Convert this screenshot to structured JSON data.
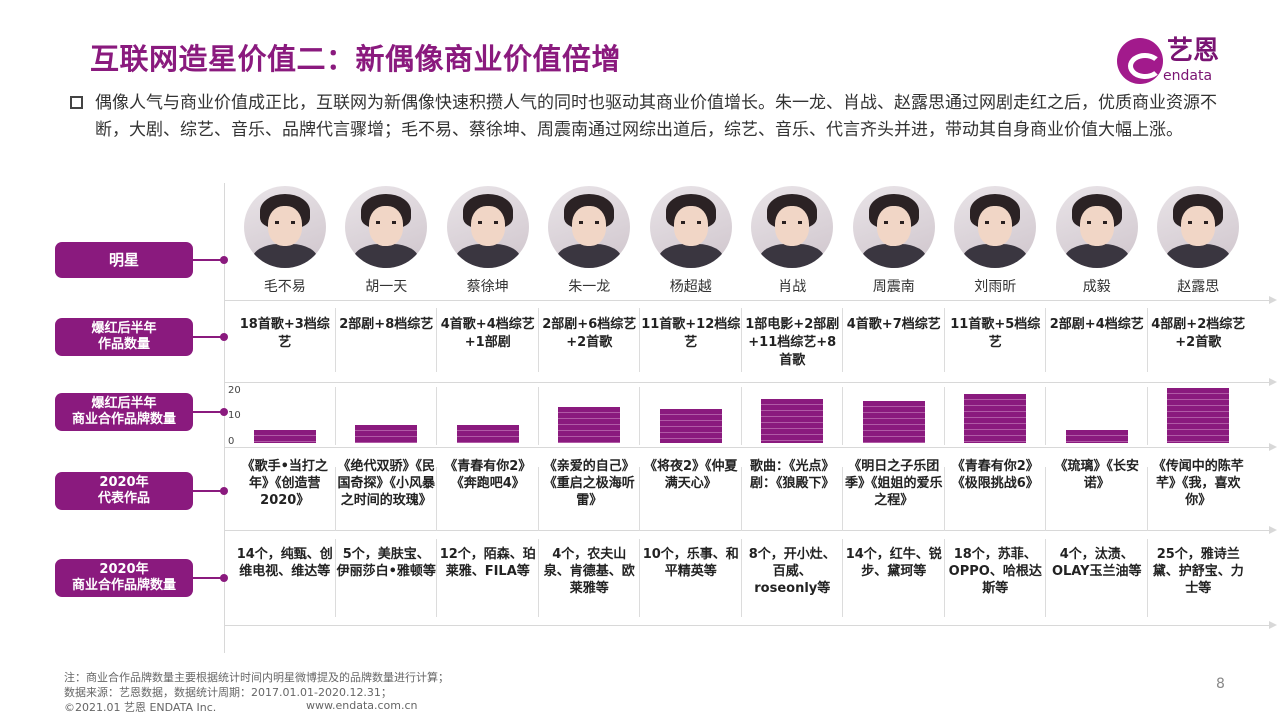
{
  "title": "互联网造星价值二：新偶像商业价值倍增",
  "logo": {
    "cn": "艺恩",
    "en": "endata"
  },
  "intro": "偶像人气与商业价值成正比，互联网为新偶像快速积攒人气的同时也驱动其商业价值增长。朱一龙、肖战、赵露思通过网剧走红之后，优质商业资源不断，大剧、综艺、音乐、品牌代言骤增；毛不易、蔡徐坤、周震南通过网综出道后，综艺、音乐、代言齐头并进，带动其自身商业价值大幅上涨。",
  "row_labels": {
    "star": "明星",
    "works_l1": "爆红后半年",
    "works_l2": "作品数量",
    "brands_l1": "爆红后半年",
    "brands_l2": "商业合作品牌数量",
    "rep_l1": "2020年",
    "rep_l2": "代表作品",
    "brands2020_l1": "2020年",
    "brands2020_l2": "商业合作品牌数量"
  },
  "stars": [
    {
      "name": "毛不易",
      "works": "18首歌+3档综艺",
      "rep": "《歌手•当打之年》《创造营2020》",
      "brands": "14个，纯甄、创维电视、维达等"
    },
    {
      "name": "胡一天",
      "works": "2部剧+8档综艺",
      "rep": "《绝代双骄》《民国奇探》《小风暴之时间的玫瑰》",
      "brands": "5个，美肤宝、伊丽莎白•雅顿等"
    },
    {
      "name": "蔡徐坤",
      "works": "4首歌+4档综艺+1部剧",
      "rep": "《青春有你2》《奔跑吧4》",
      "brands": "12个，陌森、珀莱雅、FILA等"
    },
    {
      "name": "朱一龙",
      "works": "2部剧+6档综艺+2首歌",
      "rep": "《亲爱的自己》《重启之极海听雷》",
      "brands": "4个，农夫山泉、肯德基、欧莱雅等"
    },
    {
      "name": "杨超越",
      "works": "11首歌+12档综艺",
      "rep": "《将夜2》《仲夏满天心》",
      "brands": "10个，乐事、和平精英等"
    },
    {
      "name": "肖战",
      "works": "1部电影+2部剧+11档综艺+8首歌",
      "rep": "歌曲：《光点》剧：《狼殿下》",
      "brands": "8个，开小灶、百威、roseonly等"
    },
    {
      "name": "周震南",
      "works": "4首歌+7档综艺",
      "rep": "《明日之子乐团季》《姐姐的爱乐之程》",
      "brands": "14个，红牛、锐步、黛珂等"
    },
    {
      "name": "刘雨昕",
      "works": "11首歌+5档综艺",
      "rep": "《青春有你2》《极限挑战6》",
      "brands": "18个，苏菲、OPPO、哈根达斯等"
    },
    {
      "name": "成毅",
      "works": "2部剧+4档综艺",
      "rep": "《琉璃》《长安诺》",
      "brands": "4个，汰渍、OLAY玉兰油等"
    },
    {
      "name": "赵露思",
      "works": "4部剧+2档综艺+2首歌",
      "rep": "《传闻中的陈芊芊》《我，喜欢你》",
      "brands": "25个，雅诗兰黛、护舒宝、力士等"
    }
  ],
  "chart_data": {
    "type": "bar",
    "categories": [
      "毛不易",
      "胡一天",
      "蔡徐坤",
      "朱一龙",
      "杨超越",
      "肖战",
      "周震南",
      "刘雨昕",
      "成毅",
      "赵露思"
    ],
    "values": [
      5,
      7,
      7,
      14,
      13,
      17,
      16,
      19,
      5,
      21
    ],
    "ylim": [
      0,
      20
    ],
    "yticks": [
      "0",
      "10",
      "20"
    ],
    "color": "#8a1a7e"
  },
  "footer": {
    "note": "注：商业合作品牌数量主要根据统计时间内明星微博提及的品牌数量进行计算；",
    "source": "数据来源：艺恩数据，数据统计周期：2017.01.01-2020.12.31；",
    "copyright": "©2021.01 艺恩 ENDATA Inc.",
    "url": "www.endata.com.cn",
    "page": "8"
  }
}
